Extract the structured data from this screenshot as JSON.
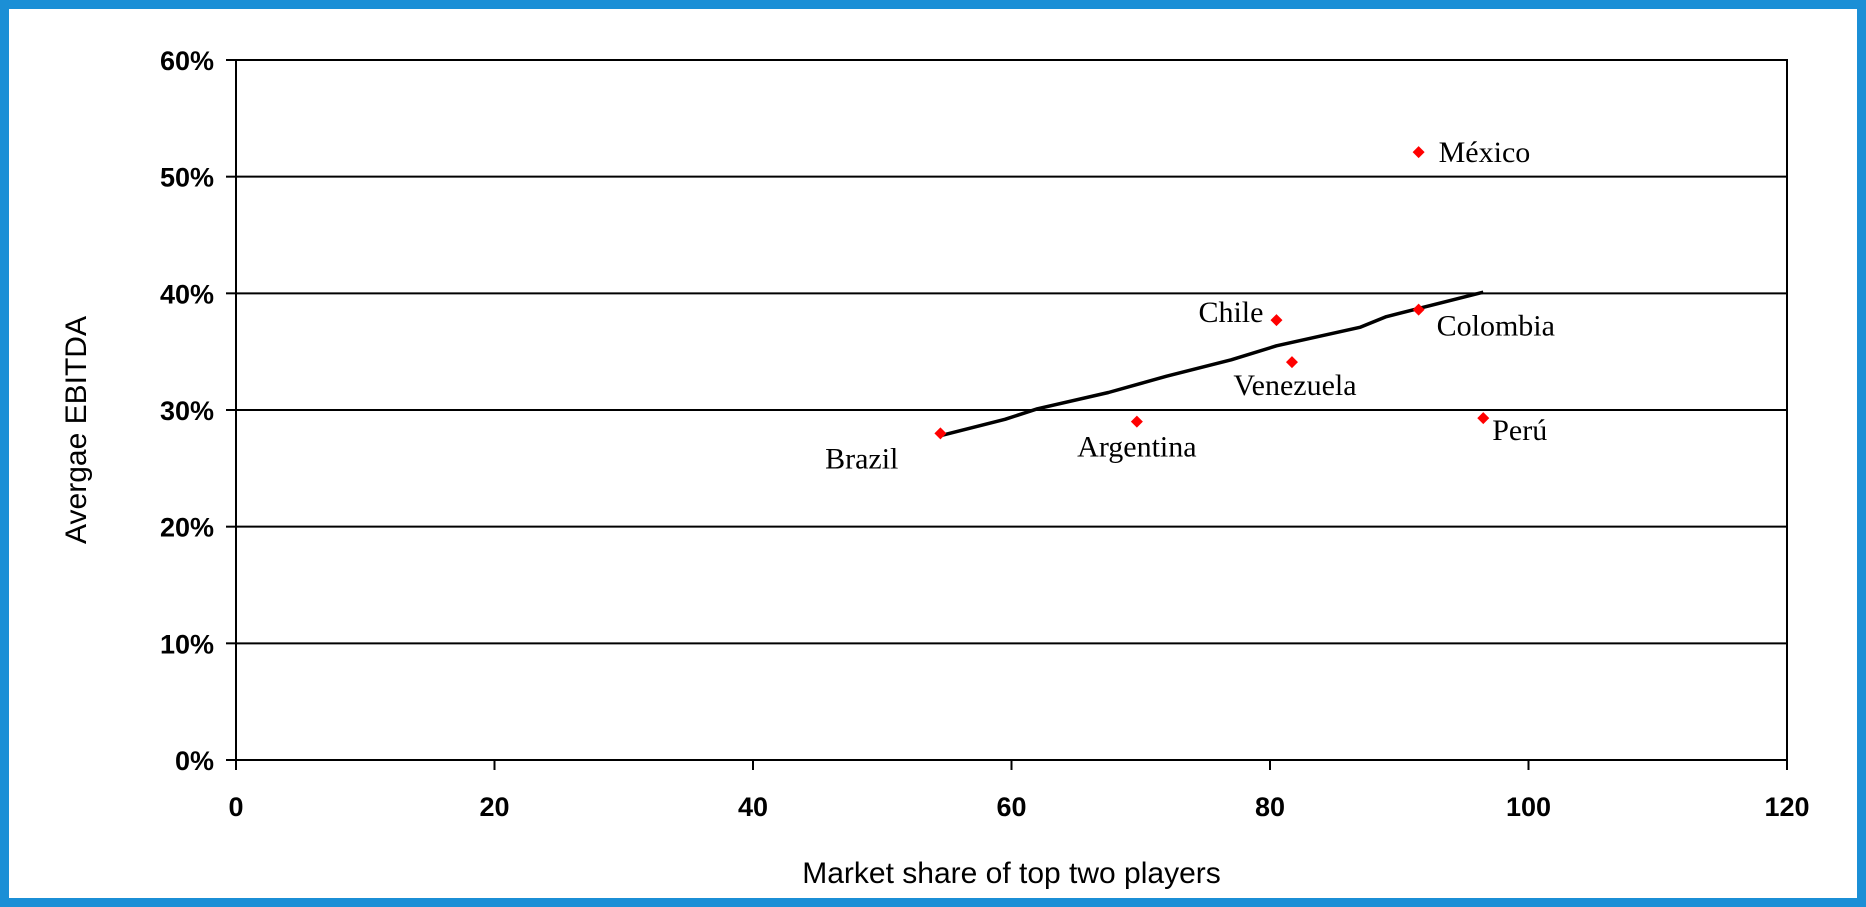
{
  "chart_data": {
    "type": "scatter",
    "title": "",
    "xlabel": "Market share of top two players",
    "ylabel": "Avergae EBITDA",
    "xlim": [
      0,
      120
    ],
    "ylim": [
      0,
      60
    ],
    "x_ticks": [
      0,
      20,
      40,
      60,
      80,
      100,
      120
    ],
    "x_tick_labels": [
      "0",
      "20",
      "40",
      "60",
      "80",
      "100",
      "120"
    ],
    "y_ticks": [
      0,
      10,
      20,
      30,
      40,
      50,
      60
    ],
    "y_tick_labels": [
      "0%",
      "10%",
      "20%",
      "30%",
      "40%",
      "50%",
      "60%"
    ],
    "grid": "horizontal",
    "marker_color": "#ff0000",
    "points": [
      {
        "label": "Brazil",
        "x": 54.5,
        "y": 28.0,
        "label_pos": "below-left"
      },
      {
        "label": "Argentina",
        "x": 69.7,
        "y": 29.0,
        "label_pos": "below"
      },
      {
        "label": "Chile",
        "x": 80.5,
        "y": 37.7,
        "label_pos": "left"
      },
      {
        "label": "Venezuela",
        "x": 81.7,
        "y": 34.1,
        "label_pos": "below"
      },
      {
        "label": "Colombia",
        "x": 91.5,
        "y": 38.6,
        "label_pos": "below-right"
      },
      {
        "label": "México",
        "x": 91.5,
        "y": 52.1,
        "label_pos": "right"
      },
      {
        "label": "Perú",
        "x": 96.5,
        "y": 29.3,
        "label_pos": "below-right"
      }
    ],
    "trendline": {
      "color": "#000000",
      "x": [
        54.5,
        59.5,
        62.0,
        67.5,
        72.0,
        77.0,
        80.5,
        87.0,
        89.0,
        96.5
      ],
      "y": [
        27.8,
        29.2,
        30.1,
        31.5,
        32.9,
        34.3,
        35.5,
        37.1,
        38.0,
        40.1
      ]
    }
  }
}
